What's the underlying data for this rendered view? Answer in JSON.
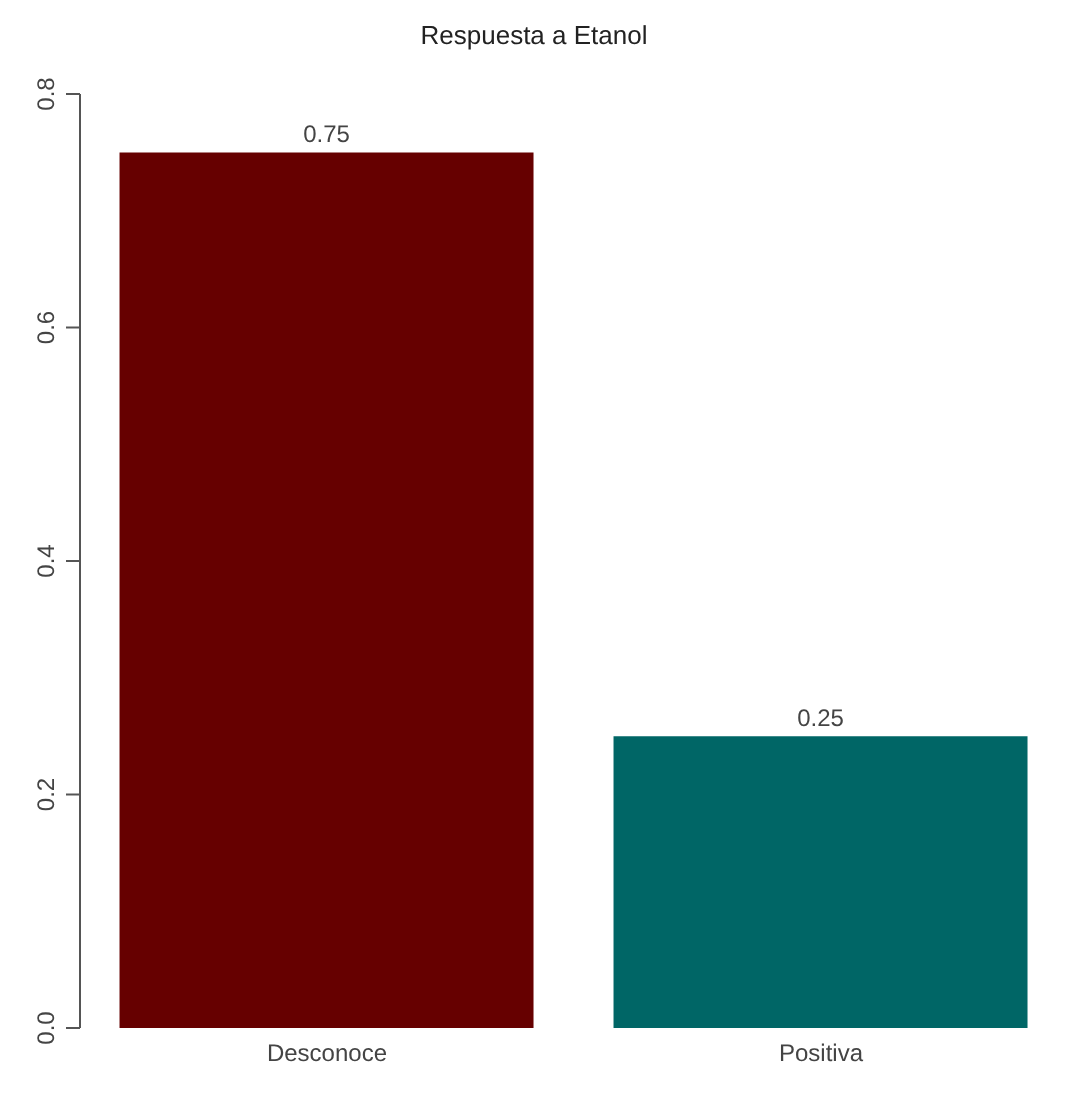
{
  "chart_data": {
    "type": "bar",
    "title": "Respuesta a Etanol",
    "categories": [
      "Desconoce",
      "Positiva"
    ],
    "values": [
      0.75,
      0.25
    ],
    "colors": [
      "#660000",
      "#006666"
    ],
    "ylim": [
      0,
      0.8
    ],
    "yticks": [
      {
        "value": 0,
        "label": "0.0"
      },
      {
        "value": 0.2,
        "label": "0.2"
      },
      {
        "value": 0.4,
        "label": "0.4"
      },
      {
        "value": 0.6,
        "label": "0.6"
      },
      {
        "value": 0.8,
        "label": "0.8"
      }
    ],
    "data_labels": true,
    "grid": false
  }
}
